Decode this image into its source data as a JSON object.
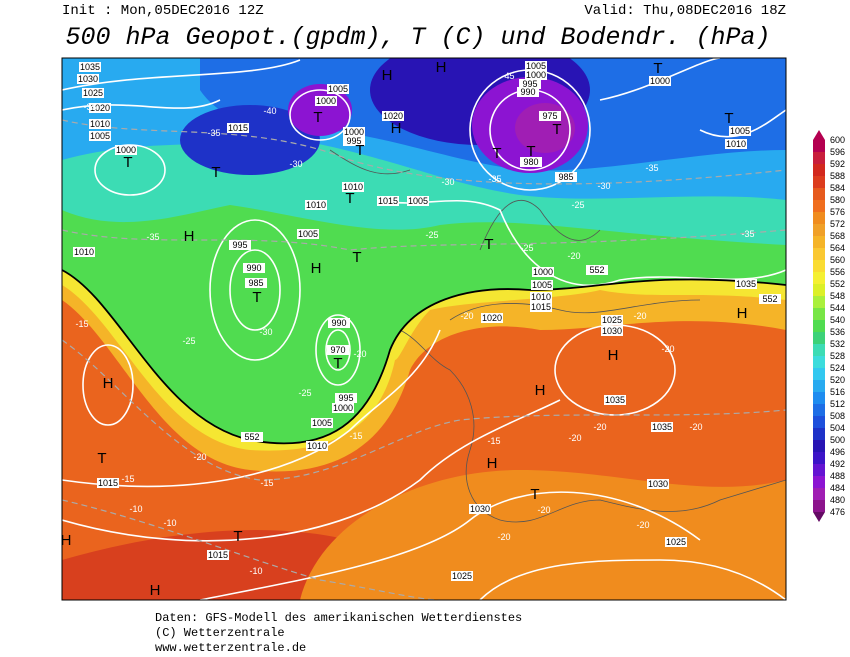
{
  "header": {
    "init": "Init : Mon,05DEC2016 12Z",
    "valid": "Valid: Thu,08DEC2016 18Z",
    "title": "500 hPa Geopot.(gpdm), T (C) und Bodendr. (hPa)"
  },
  "map": {
    "labels": [
      "1035",
      "1030",
      "1025",
      "1020",
      "1015",
      "1010",
      "1005",
      "1000",
      "1005",
      "1000",
      "1020",
      "1000",
      "995",
      "1010",
      "1015",
      "1005",
      "1010",
      "1005",
      "995",
      "990",
      "985",
      "990",
      "970",
      "995",
      "1000",
      "1005",
      "1010",
      "1015",
      "1015",
      "1025",
      "1030",
      "1020",
      "1025",
      "1030",
      "1035",
      "1035",
      "1030",
      "1025",
      "1035",
      "1010",
      "1005",
      "1000",
      "995",
      "990",
      "975",
      "980",
      "985",
      "1000",
      "1005",
      "1010",
      "1000",
      "1005",
      "1010",
      "1015",
      "-35",
      "-40",
      "-35",
      "-30",
      "-45",
      "-35",
      "-30",
      "-25",
      "-25",
      "-25",
      "-20",
      "-30",
      "-25",
      "-25",
      "-20",
      "-15",
      "-15",
      "-15",
      "-20",
      "-20",
      "-20",
      "-20",
      "-20",
      "-20",
      "-15",
      "-15",
      "-10",
      "-10",
      "-10",
      "-20",
      "-20",
      "-20",
      "-20",
      "-35",
      "-35",
      "-30",
      "-35",
      "552",
      "552",
      "552",
      "H",
      "H",
      "T",
      "T",
      "T",
      "H",
      "T",
      "H",
      "T",
      "T",
      "H",
      "T",
      "T",
      "T",
      "T",
      "T",
      "T",
      "H",
      "T",
      "H",
      "H",
      "H",
      "T",
      "T",
      "H",
      "H",
      "T",
      "T",
      "H"
    ]
  },
  "legend": {
    "levels": [
      600,
      596,
      592,
      588,
      584,
      580,
      576,
      572,
      568,
      564,
      560,
      556,
      552,
      548,
      544,
      540,
      536,
      532,
      528,
      524,
      520,
      516,
      512,
      508,
      504,
      500,
      496,
      492,
      488,
      484,
      480,
      476
    ],
    "colors": [
      "#b40050",
      "#c81e3c",
      "#d2281e",
      "#dc3c1e",
      "#e65a1e",
      "#f06e1e",
      "#f08c1e",
      "#f0a028",
      "#f5b428",
      "#fac832",
      "#fadc32",
      "#f5f032",
      "#dcf028",
      "#aaf03c",
      "#78e646",
      "#50dc50",
      "#3cd278",
      "#3cdcb4",
      "#3cdcdc",
      "#32c8f0",
      "#28aaf0",
      "#1e8cf0",
      "#1e6ee6",
      "#1e50dc",
      "#1e32c8",
      "#2814b4",
      "#3c14c8",
      "#6414d2",
      "#8c14d2",
      "#a01eb4",
      "#8c148c",
      "#640a64"
    ]
  },
  "footer": {
    "lines": [
      "Daten: GFS-Modell des amerikanischen Wetterdienstes",
      "(C) Wetterzentrale",
      "www.wetterzentrale.de"
    ]
  }
}
